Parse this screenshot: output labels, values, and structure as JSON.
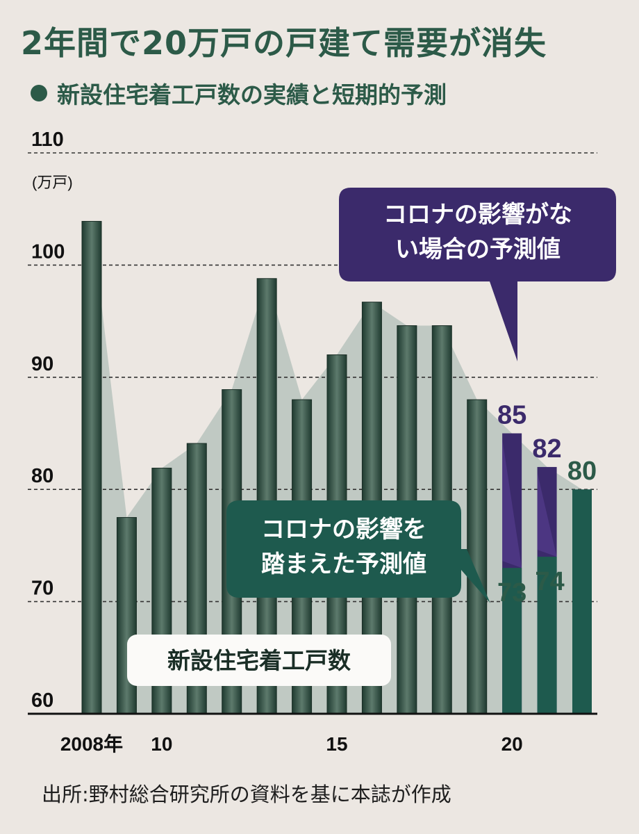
{
  "title": "2年間で20万戸の戸建て需要が消失",
  "subtitle": "新設住宅着工戸数の実績と短期的予測",
  "source": "出所:野村総合研究所の資料を基に本誌が作成",
  "chart_data": {
    "type": "bar",
    "unit": "(万戸)",
    "ylim": [
      60,
      110
    ],
    "yticks": [
      60,
      70,
      80,
      90,
      100,
      110
    ],
    "grid": true,
    "x": [
      2008,
      2009,
      2010,
      2011,
      2012,
      2013,
      2014,
      2015,
      2016,
      2017,
      2018,
      2019,
      2020,
      2021,
      2022
    ],
    "xtick_labels": [
      {
        "x": 2008,
        "label": "2008年"
      },
      {
        "x": 2010,
        "label": "10"
      },
      {
        "x": 2015,
        "label": "15"
      },
      {
        "x": 2020,
        "label": "20"
      }
    ],
    "series": [
      {
        "name": "新設住宅着工戸数",
        "x": [
          2008,
          2009,
          2010,
          2011,
          2012,
          2013,
          2014,
          2015,
          2016,
          2017,
          2018,
          2019
        ],
        "values": [
          103.9,
          77.5,
          81.9,
          84.1,
          88.9,
          98.8,
          88.0,
          92.0,
          96.7,
          94.6,
          94.6,
          88.0
        ]
      },
      {
        "name": "コロナの影響がない場合の予測値",
        "x": [
          2020,
          2021
        ],
        "values": [
          85,
          82
        ]
      },
      {
        "name": "コロナの影響を踏まえた予測値",
        "x": [
          2020,
          2021,
          2022
        ],
        "values": [
          73,
          74,
          80
        ]
      }
    ],
    "data_labels": [
      {
        "x": 2020,
        "text": "85"
      },
      {
        "x": 2021,
        "text": "82"
      },
      {
        "x": 2022,
        "text": "80"
      },
      {
        "x": 2020,
        "text": "73"
      },
      {
        "x": 2021,
        "text": "74"
      }
    ],
    "callouts": {
      "no_covid": [
        "コロナの影響がな",
        "い場合の予測値"
      ],
      "covid": [
        "コロナの影響を",
        "踏まえた予測値"
      ],
      "legend": "新設住宅着工戸数"
    },
    "colors": {
      "actual_bar": "#3b5a4b",
      "area": "#b9c3bd",
      "no_covid": "#3b2a6b",
      "covid": "#1e5a4e",
      "label_green": "#2c5a48"
    }
  }
}
